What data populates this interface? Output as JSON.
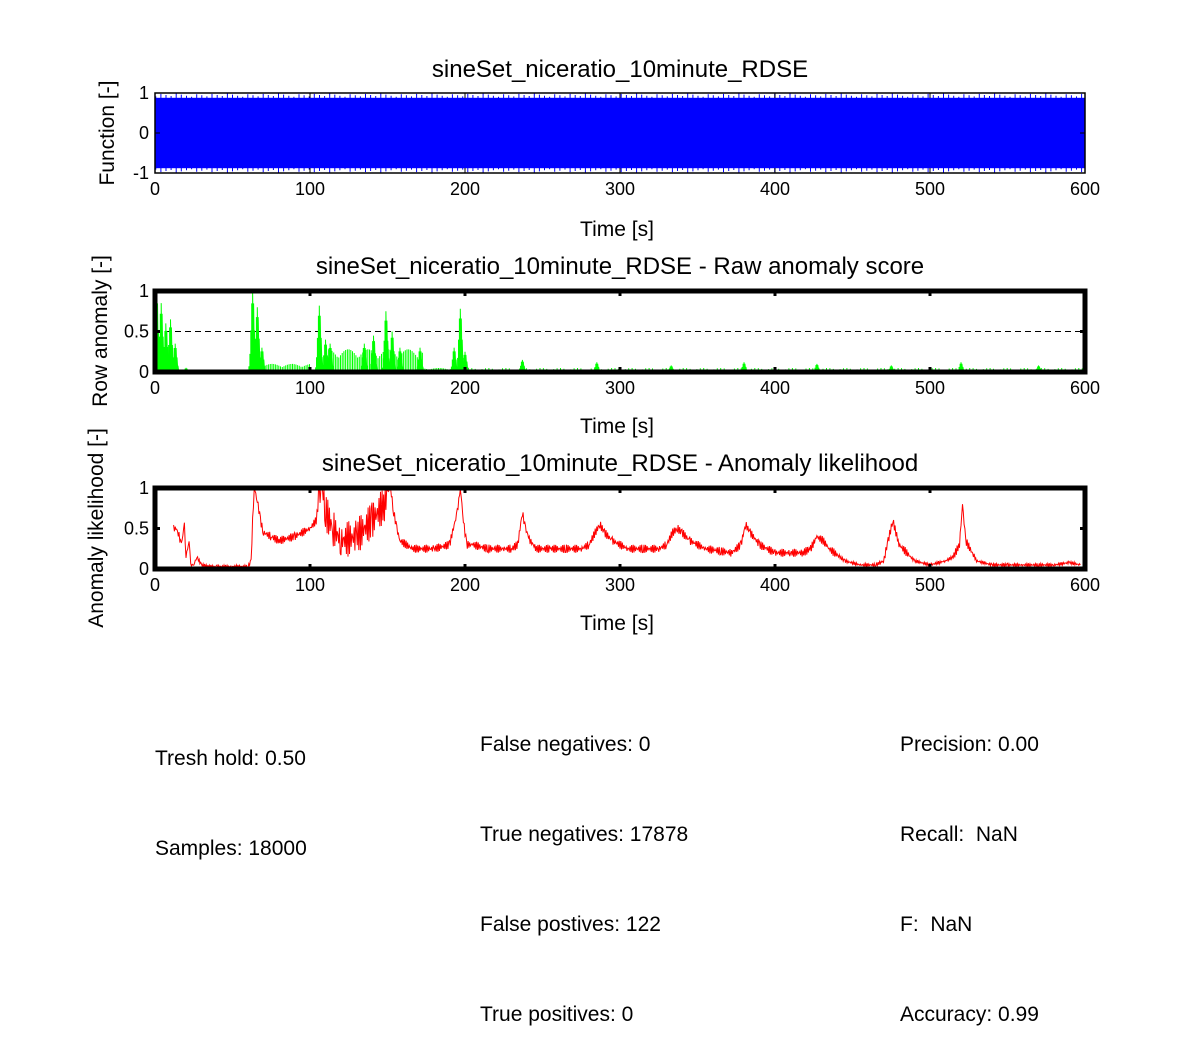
{
  "chart_data": [
    {
      "type": "line",
      "title": "sineSet_niceratio_10minute_RDSE",
      "xlabel": "Time [s]",
      "ylabel": "Function [-]",
      "xlim": [
        0,
        600
      ],
      "ylim": [
        -1,
        1
      ],
      "x_ticks": [
        "0",
        "100",
        "200",
        "300",
        "400",
        "500",
        "600"
      ],
      "y_ticks": [
        "-1",
        "0",
        "1"
      ],
      "grid": false,
      "series": [
        {
          "color": "#0000ff",
          "kind": "sine",
          "amplitude": 1,
          "samples": 18000,
          "x": [
            0,
            600
          ],
          "y_range": [
            -1,
            1
          ]
        }
      ]
    },
    {
      "type": "line",
      "title": "sineSet_niceratio_10minute_RDSE - Raw anomaly score",
      "xlabel": "Time [s]",
      "ylabel": "Row anomaly [-]",
      "xlim": [
        0,
        600
      ],
      "ylim": [
        0,
        1
      ],
      "x_ticks": [
        "0",
        "100",
        "200",
        "300",
        "400",
        "500",
        "600"
      ],
      "y_ticks": [
        "0",
        "0.5",
        "1"
      ],
      "grid": false,
      "threshold": 0.5,
      "series": [
        {
          "color": "#00ff00",
          "peaks": [
            {
              "x": 1,
              "y": 1.0
            },
            {
              "x": 4,
              "y": 0.85
            },
            {
              "x": 7,
              "y": 0.6
            },
            {
              "x": 10,
              "y": 0.65
            },
            {
              "x": 13,
              "y": 0.35
            },
            {
              "x": 20,
              "y": 0.05
            },
            {
              "x": 63,
              "y": 1.0
            },
            {
              "x": 66,
              "y": 0.8
            },
            {
              "x": 69,
              "y": 0.3
            },
            {
              "x": 106,
              "y": 0.82
            },
            {
              "x": 110,
              "y": 0.4
            },
            {
              "x": 113,
              "y": 0.35
            },
            {
              "x": 135,
              "y": 0.35
            },
            {
              "x": 141,
              "y": 0.45
            },
            {
              "x": 149,
              "y": 0.75
            },
            {
              "x": 153,
              "y": 0.5
            },
            {
              "x": 158,
              "y": 0.3
            },
            {
              "x": 171,
              "y": 0.3
            },
            {
              "x": 193,
              "y": 0.3
            },
            {
              "x": 197,
              "y": 0.78
            },
            {
              "x": 200,
              "y": 0.25
            },
            {
              "x": 237,
              "y": 0.15
            },
            {
              "x": 285,
              "y": 0.12
            },
            {
              "x": 333,
              "y": 0.08
            },
            {
              "x": 380,
              "y": 0.12
            },
            {
              "x": 427,
              "y": 0.1
            },
            {
              "x": 475,
              "y": 0.08
            },
            {
              "x": 520,
              "y": 0.12
            },
            {
              "x": 570,
              "y": 0.08
            }
          ],
          "plateaus": [
            {
              "x": [
                70,
                100
              ],
              "y": 0.1
            },
            {
              "x": [
                112,
                173
              ],
              "y": 0.28
            },
            {
              "x": [
                173,
                200
              ],
              "y": 0.05
            }
          ]
        },
        {
          "color": "#0000ff",
          "name": "",
          "y": 0
        }
      ]
    },
    {
      "type": "line",
      "title": "sineSet_niceratio_10minute_RDSE - Anomaly likelihood",
      "xlabel": "Time [s]",
      "ylabel": "Anomaly likelihood [-]",
      "xlim": [
        0,
        600
      ],
      "ylim": [
        0,
        1
      ],
      "x_ticks": [
        "0",
        "100",
        "200",
        "300",
        "400",
        "500",
        "600"
      ],
      "y_ticks": [
        "0",
        "0.5",
        "1"
      ],
      "grid": false,
      "series": [
        {
          "color": "#ff0000",
          "x": [
            12,
            14,
            15,
            17,
            19,
            20,
            22,
            23,
            25,
            27,
            30,
            35,
            40,
            50,
            60,
            62,
            63,
            64,
            66,
            68,
            70,
            75,
            80,
            90,
            100,
            104,
            106,
            108,
            110,
            115,
            120,
            130,
            140,
            148,
            150,
            152,
            154,
            156,
            158,
            162,
            166,
            170,
            180,
            190,
            195,
            197,
            199,
            201,
            205,
            215,
            225,
            230,
            234,
            237,
            239,
            242,
            246,
            255,
            265,
            275,
            280,
            284,
            287,
            290,
            295,
            305,
            315,
            325,
            330,
            334,
            337,
            340,
            345,
            355,
            365,
            372,
            378,
            381,
            384,
            390,
            400,
            410,
            418,
            423,
            427,
            431,
            435,
            445,
            455,
            465,
            470,
            473,
            476,
            480,
            490,
            500,
            510,
            515,
            519,
            521,
            523,
            530,
            540,
            550,
            560,
            570,
            580,
            590,
            597
          ],
          "y": [
            0.5,
            0.5,
            0.45,
            0.3,
            0.55,
            0.15,
            0.35,
            0.05,
            0.05,
            0.15,
            0.05,
            0.03,
            0.03,
            0.03,
            0.03,
            0.1,
            0.6,
            1.0,
            0.85,
            0.6,
            0.45,
            0.4,
            0.35,
            0.4,
            0.5,
            0.6,
            0.9,
            1.0,
            0.7,
            0.5,
            0.35,
            0.4,
            0.6,
            0.8,
            0.95,
            1.0,
            0.7,
            0.5,
            0.35,
            0.3,
            0.25,
            0.25,
            0.25,
            0.3,
            0.7,
            1.0,
            0.6,
            0.3,
            0.3,
            0.25,
            0.25,
            0.25,
            0.3,
            0.7,
            0.5,
            0.35,
            0.25,
            0.25,
            0.25,
            0.25,
            0.3,
            0.45,
            0.55,
            0.45,
            0.35,
            0.25,
            0.25,
            0.25,
            0.3,
            0.45,
            0.5,
            0.45,
            0.35,
            0.25,
            0.22,
            0.2,
            0.3,
            0.55,
            0.45,
            0.3,
            0.2,
            0.2,
            0.2,
            0.25,
            0.4,
            0.35,
            0.25,
            0.1,
            0.05,
            0.05,
            0.1,
            0.35,
            0.6,
            0.3,
            0.1,
            0.05,
            0.1,
            0.15,
            0.3,
            0.8,
            0.35,
            0.1,
            0.05,
            0.05,
            0.05,
            0.05,
            0.05,
            0.08,
            0.05
          ]
        }
      ]
    }
  ],
  "stats": {
    "left": [
      "Tresh hold: 0.50",
      "Samples: 18000"
    ],
    "middle": [
      "False negatives: 0",
      "True negatives: 17878",
      "False postives: 122",
      "True positives: 0"
    ],
    "right": [
      "Precision: 0.00",
      "Recall:  NaN",
      "F:  NaN",
      "Accuracy: 0.99"
    ]
  }
}
